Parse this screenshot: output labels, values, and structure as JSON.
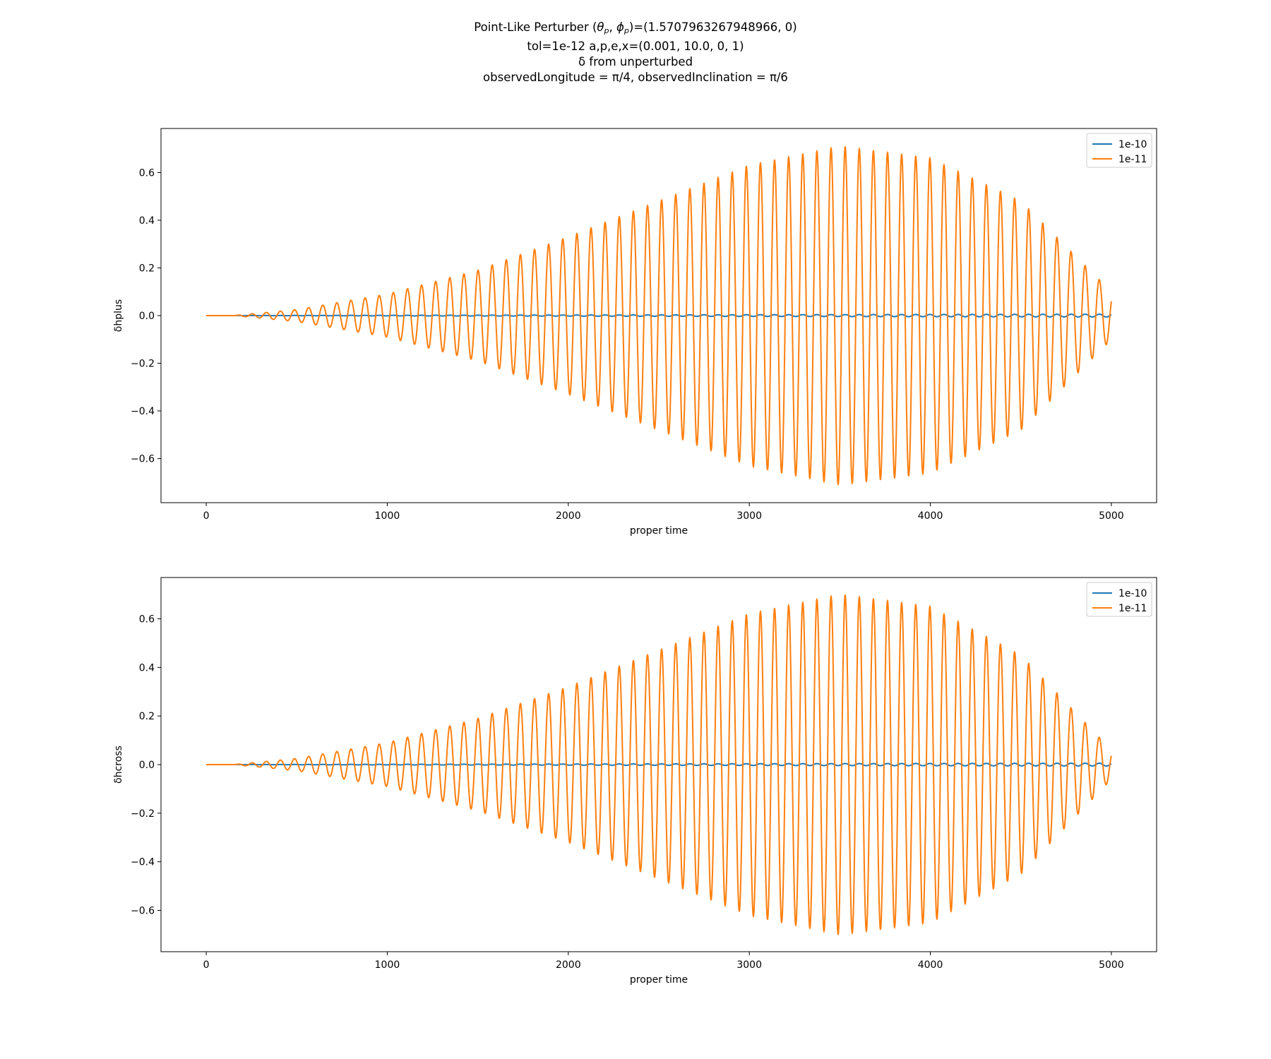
{
  "figure": {
    "title_line1_prefix": "Point-Like Perturber (",
    "theta_symbol": "θ",
    "theta_sub": "p",
    "comma_sep": ", ",
    "phi_symbol": "ϕ",
    "phi_sub": "p",
    "title_line1_suffix": ")=(1.5707963267948966, 0)",
    "title_line2": "tol=1e-12 a,p,e,x=(0.001, 10.0, 0, 1)",
    "title_line3": "δ from unperturbed",
    "title_line4": "observedLongitude = π/4, observedInclination = π/6"
  },
  "colors": {
    "series_1e-10": "#1f77b4",
    "series_1e-11": "#ff7f0e"
  },
  "chart_data": [
    {
      "type": "line",
      "xlabel": "proper time",
      "ylabel": "δhplus",
      "xlim": [
        -250,
        5250
      ],
      "ylim": [
        -0.785,
        0.785
      ],
      "xticks": [
        0,
        1000,
        2000,
        3000,
        4000,
        5000
      ],
      "xtick_labels": [
        "0",
        "1000",
        "2000",
        "3000",
        "4000",
        "5000"
      ],
      "yticks": [
        -0.6,
        -0.4,
        -0.2,
        0.0,
        0.2,
        0.4,
        0.6
      ],
      "ytick_labels": [
        "−0.6",
        "−0.4",
        "−0.2",
        "0.0",
        "0.2",
        "0.4",
        "0.6"
      ],
      "legend_position": "top-right",
      "series": [
        {
          "name": "1e-10",
          "color": "#1f77b4",
          "x_start": 0,
          "x_end": 5000,
          "period": 78,
          "envelope_x": [
            0,
            5000
          ],
          "envelope_y": [
            0.0,
            0.006
          ]
        },
        {
          "name": "1e-11",
          "color": "#ff7f0e",
          "x_start": 0,
          "x_end": 5000,
          "period": 78,
          "envelope_x": [
            0,
            150,
            500,
            1000,
            1500,
            2000,
            2500,
            3000,
            3500,
            4000,
            4500,
            5000
          ],
          "envelope_y": [
            0.0,
            0.0,
            0.025,
            0.09,
            0.19,
            0.33,
            0.48,
            0.63,
            0.71,
            0.66,
            0.48,
            0.1
          ]
        }
      ]
    },
    {
      "type": "line",
      "xlabel": "proper time",
      "ylabel": "δhcross",
      "xlim": [
        -250,
        5250
      ],
      "ylim": [
        -0.77,
        0.77
      ],
      "xticks": [
        0,
        1000,
        2000,
        3000,
        4000,
        5000
      ],
      "xtick_labels": [
        "0",
        "1000",
        "2000",
        "3000",
        "4000",
        "5000"
      ],
      "yticks": [
        -0.6,
        -0.4,
        -0.2,
        0.0,
        0.2,
        0.4,
        0.6
      ],
      "ytick_labels": [
        "−0.6",
        "−0.4",
        "−0.2",
        "0.0",
        "0.2",
        "0.4",
        "0.6"
      ],
      "legend_position": "top-right",
      "series": [
        {
          "name": "1e-10",
          "color": "#1f77b4",
          "x_start": 0,
          "x_end": 5000,
          "period": 78,
          "envelope_x": [
            0,
            5000
          ],
          "envelope_y": [
            0.0,
            0.006
          ]
        },
        {
          "name": "1e-11",
          "color": "#ff7f0e",
          "x_start": 0,
          "x_end": 5000,
          "period": 78,
          "envelope_x": [
            0,
            150,
            500,
            1000,
            1500,
            2000,
            2500,
            3000,
            3500,
            4000,
            4500,
            5000
          ],
          "envelope_y": [
            0.0,
            0.0,
            0.025,
            0.09,
            0.19,
            0.32,
            0.47,
            0.62,
            0.7,
            0.65,
            0.45,
            0.06
          ]
        }
      ]
    }
  ]
}
